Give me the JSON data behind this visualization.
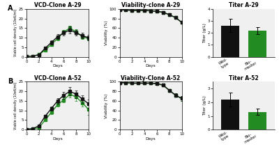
{
  "row_A": {
    "vcd_title": "VCD-Clone A-29",
    "viability_title": "Viability-clone A-29",
    "titer_title": "Titer A-29",
    "vcd_days": [
      0,
      1,
      2,
      3,
      4,
      5,
      6,
      7,
      8,
      9,
      10
    ],
    "vcd_black": [
      0.2,
      0.4,
      1.0,
      4.5,
      7.5,
      10.5,
      12.5,
      14.0,
      12.5,
      11.0,
      10.0
    ],
    "vcd_black_err": [
      0.05,
      0.05,
      0.15,
      0.8,
      1.0,
      1.2,
      1.3,
      1.8,
      1.5,
      1.5,
      1.5
    ],
    "vcd_green": [
      0.2,
      0.4,
      1.2,
      3.5,
      6.5,
      9.5,
      13.0,
      15.0,
      13.0,
      10.5,
      9.5
    ],
    "vcd_green_err": [
      0.05,
      0.05,
      0.2,
      0.5,
      0.7,
      0.9,
      1.1,
      1.3,
      1.3,
      1.1,
      0.9
    ],
    "viab_days": [
      0,
      1,
      2,
      3,
      4,
      5,
      6,
      7,
      8,
      9,
      10
    ],
    "viab_black": [
      98,
      98,
      97,
      97,
      97,
      96,
      95,
      93,
      88,
      82,
      72
    ],
    "viab_black_err": [
      0.3,
      0.3,
      0.3,
      0.3,
      0.3,
      0.3,
      0.5,
      0.8,
      1.2,
      1.8,
      2.5
    ],
    "viab_green": [
      98,
      98,
      97,
      97,
      97,
      96,
      95,
      93,
      88,
      82,
      72
    ],
    "viab_green_err": [
      0.3,
      0.3,
      0.3,
      0.3,
      0.3,
      0.3,
      0.5,
      0.8,
      1.2,
      1.8,
      2.5
    ],
    "titer_black": 2.6,
    "titer_black_err": 0.55,
    "titer_green": 2.2,
    "titer_green_err": 0.28,
    "titer_ylim": [
      0,
      4.0
    ]
  },
  "row_B": {
    "vcd_title": "VCD-Clone A-52",
    "viability_title": "Viability-Clone A-52",
    "titer_title": "Titer A-52",
    "vcd_days": [
      0,
      1,
      2,
      3,
      4,
      5,
      6,
      7,
      8,
      9,
      10
    ],
    "vcd_black": [
      0.2,
      0.5,
      2.0,
      7.0,
      11.0,
      15.0,
      18.0,
      20.0,
      18.5,
      16.0,
      13.5
    ],
    "vcd_black_err": [
      0.05,
      0.1,
      0.3,
      0.7,
      1.0,
      1.5,
      1.8,
      2.2,
      2.0,
      2.0,
      2.2
    ],
    "vcd_green": [
      0.2,
      0.4,
      1.0,
      5.0,
      9.0,
      13.0,
      15.5,
      18.5,
      17.0,
      14.0,
      10.5
    ],
    "vcd_green_err": [
      0.05,
      0.1,
      0.2,
      0.5,
      0.8,
      1.0,
      1.3,
      1.8,
      2.0,
      1.8,
      2.8
    ],
    "viab_days": [
      0,
      1,
      2,
      3,
      4,
      5,
      6,
      7,
      8,
      9,
      10
    ],
    "viab_black": [
      98,
      98,
      97,
      97,
      97,
      97,
      96,
      93,
      82,
      72,
      65
    ],
    "viab_black_err": [
      0.3,
      0.3,
      0.3,
      0.3,
      0.3,
      0.3,
      0.5,
      1.2,
      2.5,
      3.5,
      4.5
    ],
    "viab_green": [
      98,
      98,
      97,
      97,
      97,
      97,
      96,
      93,
      82,
      72,
      65
    ],
    "viab_green_err": [
      0.3,
      0.3,
      0.3,
      0.3,
      0.3,
      0.3,
      0.5,
      1.2,
      2.5,
      3.5,
      4.5
    ],
    "titer_black": 2.2,
    "titer_black_err": 0.5,
    "titer_green": 1.3,
    "titer_green_err": 0.22,
    "titer_ylim": [
      0,
      3.5
    ]
  },
  "vcd_ylim": [
    0,
    25
  ],
  "viab_ylim": [
    0,
    100
  ],
  "days_xlim": [
    0,
    10
  ],
  "black_color": "#111111",
  "green_color": "#228B22",
  "bar_width": 0.3,
  "xlabel": "Days",
  "vcd_ylabel": "Viable cell density (10e6/ml)",
  "viab_ylabel": "Viability (%)",
  "titer_ylabel": "Titer (g/L)",
  "bar_labels": [
    "Wild-\ntype",
    "Bio-\nmaster"
  ],
  "label_A": "A",
  "label_B": "B",
  "marker_size": 2.5,
  "line_width": 1.0,
  "font_size_title": 5.5,
  "font_size_label": 4.2,
  "font_size_tick": 4.0,
  "font_size_panel": 7,
  "bg_color": "#f0f0f0"
}
